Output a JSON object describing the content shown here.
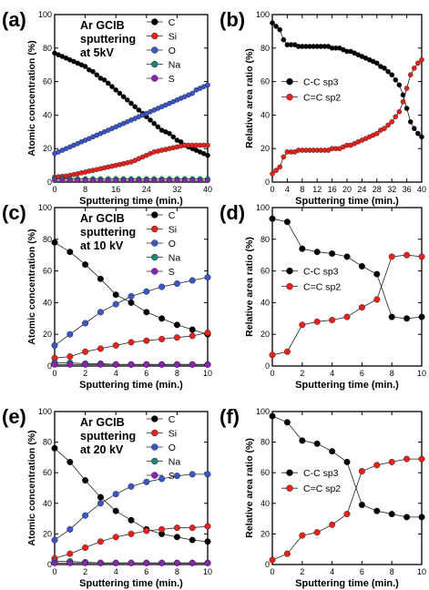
{
  "colors": {
    "C": "#000000",
    "Si": "#e8231d",
    "O": "#3b56c7",
    "Na": "#13877a",
    "S": "#8a22b8",
    "sp3": "#000000",
    "sp2": "#e8231d"
  },
  "chart_data": [
    {
      "panel": "(a)",
      "type": "line",
      "annotation": [
        "Ar GCIB",
        "sputtering",
        "at 5kV"
      ],
      "xlabel": "Sputtering time (min.)",
      "ylabel": "Atomic concentration (%)",
      "xlim": [
        0,
        40
      ],
      "ylim": [
        0,
        100
      ],
      "xticks": [
        0,
        8,
        16,
        24,
        32,
        40
      ],
      "yticks": [
        0,
        20,
        40,
        60,
        80,
        100
      ],
      "legend_position": "top-right",
      "legend_box": false,
      "series": [
        {
          "name": "C",
          "key": "C",
          "x": [
            0,
            1,
            2,
            3,
            4,
            5,
            6,
            7,
            8,
            9,
            10,
            11,
            12,
            13,
            14,
            15,
            16,
            17,
            18,
            19,
            20,
            21,
            22,
            23,
            24,
            25,
            26,
            27,
            28,
            29,
            30,
            31,
            32,
            33,
            34,
            35,
            36,
            37,
            38,
            39,
            40
          ],
          "y": [
            77,
            76,
            75,
            74,
            73,
            72,
            71,
            70,
            69,
            67,
            66,
            64,
            62,
            61,
            59,
            57,
            55,
            53,
            51,
            49,
            47,
            45,
            43,
            41,
            39,
            37,
            35,
            33,
            31,
            30,
            29,
            27,
            25,
            24,
            22,
            21,
            20,
            19,
            18,
            17,
            16
          ]
        },
        {
          "name": "Si",
          "key": "Si",
          "x": [
            0,
            1,
            2,
            3,
            4,
            5,
            6,
            7,
            8,
            9,
            10,
            11,
            12,
            13,
            14,
            15,
            16,
            17,
            18,
            19,
            20,
            21,
            22,
            23,
            24,
            25,
            26,
            27,
            28,
            29,
            30,
            31,
            32,
            33,
            34,
            35,
            36,
            37,
            38,
            39,
            40
          ],
          "y": [
            3,
            3.2,
            3.4,
            3.6,
            4,
            4.5,
            5,
            5.5,
            6,
            6.5,
            7,
            7.5,
            8,
            8.5,
            9,
            9.5,
            10,
            10.5,
            11,
            11.5,
            12,
            13,
            14,
            15,
            16,
            17,
            18,
            18.5,
            19,
            19.5,
            20,
            20.5,
            21,
            21.5,
            22,
            22,
            22,
            22,
            22,
            22,
            22
          ]
        },
        {
          "name": "O",
          "key": "O",
          "x": [
            0,
            1,
            2,
            3,
            4,
            5,
            6,
            7,
            8,
            9,
            10,
            11,
            12,
            13,
            14,
            15,
            16,
            17,
            18,
            19,
            20,
            21,
            22,
            23,
            24,
            25,
            26,
            27,
            28,
            29,
            30,
            31,
            32,
            33,
            34,
            35,
            36,
            37,
            38,
            39,
            40
          ],
          "y": [
            17,
            18,
            19,
            20,
            21,
            22,
            23,
            24,
            25,
            26,
            27,
            28,
            29,
            30,
            31,
            32,
            33,
            34,
            35,
            36,
            37,
            38,
            39,
            40,
            41,
            42,
            43,
            44,
            45,
            46,
            47,
            48,
            49,
            50,
            51,
            52,
            53,
            55,
            56,
            57,
            58
          ]
        },
        {
          "name": "Na",
          "key": "Na",
          "x": [
            0,
            2,
            4,
            6,
            8,
            10,
            12,
            14,
            16,
            18,
            20,
            22,
            24,
            26,
            28,
            30,
            32,
            34,
            36,
            38,
            40
          ],
          "y": [
            2,
            2,
            2,
            2,
            2,
            2,
            2,
            2,
            2,
            2,
            2,
            2,
            2,
            2,
            2,
            2,
            2,
            2,
            2,
            2,
            2
          ]
        },
        {
          "name": "S",
          "key": "S",
          "x": [
            0,
            2,
            4,
            6,
            8,
            10,
            12,
            14,
            16,
            18,
            20,
            22,
            24,
            26,
            28,
            30,
            32,
            34,
            36,
            38,
            40
          ],
          "y": [
            1,
            1,
            1,
            1,
            1,
            1,
            1,
            1,
            1,
            1,
            1,
            1,
            1,
            1,
            1,
            1,
            1,
            1,
            1,
            1,
            1
          ]
        }
      ]
    },
    {
      "panel": "(b)",
      "type": "line",
      "annotation": [],
      "xlabel": "Sputtering time (min.)",
      "ylabel": "Relative area ratio (%)",
      "xlim": [
        0,
        40
      ],
      "ylim": [
        0,
        100
      ],
      "xticks": [
        0,
        4,
        8,
        12,
        16,
        20,
        24,
        28,
        32,
        36,
        40
      ],
      "xticklabels": [
        "0",
        "4",
        "8",
        "12",
        "16",
        "20",
        "24",
        "28",
        "32",
        "36",
        "40"
      ],
      "yticks": [
        0,
        20,
        40,
        60,
        80,
        100
      ],
      "legend_position": "middle-left",
      "legend_box": false,
      "series": [
        {
          "name": "C-C sp3",
          "key": "sp3",
          "x": [
            0,
            1,
            2,
            3,
            4,
            5,
            6,
            7,
            8,
            9,
            10,
            11,
            12,
            13,
            14,
            15,
            16,
            17,
            18,
            19,
            20,
            21,
            22,
            23,
            24,
            25,
            26,
            27,
            28,
            29,
            30,
            31,
            32,
            33,
            34,
            35,
            36,
            37,
            38,
            39,
            40
          ],
          "y": [
            95,
            93,
            91,
            85,
            82,
            82,
            82,
            81,
            81,
            81,
            81,
            81,
            81,
            81,
            81,
            81,
            80,
            80,
            80,
            79,
            78,
            78,
            77,
            76,
            75,
            74,
            73,
            72,
            71,
            69,
            68,
            66,
            64,
            61,
            58,
            52,
            44,
            36,
            32,
            29,
            27
          ]
        },
        {
          "name": "C=C sp2",
          "key": "sp2",
          "x": [
            0,
            1,
            2,
            3,
            4,
            5,
            6,
            7,
            8,
            9,
            10,
            11,
            12,
            13,
            14,
            15,
            16,
            17,
            18,
            19,
            20,
            21,
            22,
            23,
            24,
            25,
            26,
            27,
            28,
            29,
            30,
            31,
            32,
            33,
            34,
            35,
            36,
            37,
            38,
            39,
            40
          ],
          "y": [
            5,
            7,
            9,
            15,
            18,
            18,
            18,
            19,
            19,
            19,
            19,
            19,
            19,
            19,
            19,
            19,
            20,
            20,
            20,
            21,
            22,
            22,
            23,
            24,
            25,
            26,
            27,
            28,
            29,
            31,
            32,
            34,
            36,
            39,
            42,
            48,
            56,
            64,
            68,
            71,
            73
          ]
        }
      ]
    },
    {
      "panel": "(c)",
      "type": "line",
      "annotation": [
        "Ar GCIB",
        "sputtering",
        "at 10 kV"
      ],
      "xlabel": "Sputtering time (min.)",
      "ylabel": "Atomic concentration (%)",
      "xlim": [
        0,
        10
      ],
      "ylim": [
        0,
        100
      ],
      "xticks": [
        0,
        2,
        4,
        6,
        8,
        10
      ],
      "yticks": [
        0,
        20,
        40,
        60,
        80,
        100
      ],
      "legend_position": "top-right",
      "legend_box": false,
      "series": [
        {
          "name": "C",
          "key": "C",
          "x": [
            0,
            1,
            2,
            3,
            4,
            5,
            6,
            7,
            8,
            9,
            10
          ],
          "y": [
            78,
            72,
            64,
            55,
            45,
            40,
            34,
            30,
            26,
            23,
            20
          ]
        },
        {
          "name": "Si",
          "key": "Si",
          "x": [
            0,
            1,
            2,
            3,
            4,
            5,
            6,
            7,
            8,
            9,
            10
          ],
          "y": [
            5,
            6,
            9,
            11,
            13,
            15,
            16,
            17,
            18,
            19,
            21
          ]
        },
        {
          "name": "O",
          "key": "O",
          "x": [
            0,
            1,
            2,
            3,
            4,
            5,
            6,
            7,
            8,
            9,
            10
          ],
          "y": [
            13,
            20,
            27,
            34,
            39,
            44,
            47,
            50,
            52,
            54,
            56
          ]
        },
        {
          "name": "Na",
          "key": "Na",
          "x": [
            0,
            1,
            2,
            3,
            4,
            5,
            6,
            7,
            8,
            9,
            10
          ],
          "y": [
            2,
            2,
            1.5,
            1.5,
            1,
            1,
            1,
            1,
            1,
            1,
            1
          ]
        },
        {
          "name": "S",
          "key": "S",
          "x": [
            0,
            1,
            2,
            3,
            4,
            5,
            6,
            7,
            8,
            9,
            10
          ],
          "y": [
            1,
            1,
            1,
            1,
            1,
            1,
            1,
            1,
            1,
            1,
            1
          ]
        }
      ]
    },
    {
      "panel": "(d)",
      "type": "line",
      "annotation": [],
      "xlabel": "Sputtering time (min.)",
      "ylabel": "Relative area ratio (%)",
      "xlim": [
        0,
        10
      ],
      "ylim": [
        0,
        100
      ],
      "xticks": [
        0,
        2,
        4,
        6,
        8,
        10
      ],
      "yticks": [
        0,
        20,
        40,
        60,
        80,
        100
      ],
      "legend_position": "middle-left",
      "legend_box": false,
      "series": [
        {
          "name": "C-C sp3",
          "key": "sp3",
          "x": [
            0,
            1,
            2,
            3,
            4,
            5,
            6,
            7,
            8,
            9,
            10
          ],
          "y": [
            93,
            91,
            74,
            72,
            71,
            69,
            63,
            58,
            31,
            30,
            31
          ]
        },
        {
          "name": "C=C sp2",
          "key": "sp2",
          "x": [
            0,
            1,
            2,
            3,
            4,
            5,
            6,
            7,
            8,
            9,
            10
          ],
          "y": [
            7,
            9,
            26,
            28,
            29,
            31,
            37,
            42,
            69,
            70,
            69
          ]
        }
      ]
    },
    {
      "panel": "(e)",
      "type": "line",
      "annotation": [
        "Ar GCIB",
        "sputtering",
        "at 20 kV"
      ],
      "xlabel": "Sputtering time (min.)",
      "ylabel": "Atomic concentration (%)",
      "xlim": [
        0,
        10
      ],
      "ylim": [
        0,
        100
      ],
      "xticks": [
        0,
        2,
        4,
        6,
        8,
        10
      ],
      "yticks": [
        0,
        20,
        40,
        60,
        80,
        100
      ],
      "legend_position": "top-right",
      "legend_box": false,
      "series": [
        {
          "name": "C",
          "key": "C",
          "x": [
            0,
            1,
            2,
            3,
            4,
            5,
            6,
            7,
            8,
            9,
            10
          ],
          "y": [
            76,
            67,
            55,
            44,
            35,
            29,
            23,
            20,
            18,
            16,
            15
          ]
        },
        {
          "name": "Si",
          "key": "Si",
          "x": [
            0,
            1,
            2,
            3,
            4,
            5,
            6,
            7,
            8,
            9,
            10
          ],
          "y": [
            4,
            7,
            11,
            15,
            18,
            20,
            22,
            23,
            24,
            24,
            25
          ]
        },
        {
          "name": "O",
          "key": "O",
          "x": [
            0,
            1,
            2,
            3,
            4,
            5,
            6,
            7,
            8,
            9,
            10
          ],
          "y": [
            16,
            23,
            32,
            40,
            46,
            51,
            54,
            56,
            58,
            59,
            59
          ]
        },
        {
          "name": "Na",
          "key": "Na",
          "x": [
            0,
            1,
            2,
            3,
            4,
            5,
            6,
            7,
            8,
            9,
            10
          ],
          "y": [
            2,
            2,
            1.5,
            1,
            1,
            1,
            1,
            1,
            1,
            1,
            1
          ]
        },
        {
          "name": "S",
          "key": "S",
          "x": [
            0,
            1,
            2,
            3,
            4,
            5,
            6,
            7,
            8,
            9,
            10
          ],
          "y": [
            1,
            1,
            1,
            1,
            1,
            1,
            1,
            1,
            1,
            1,
            1
          ]
        }
      ]
    },
    {
      "panel": "(f)",
      "type": "line",
      "annotation": [],
      "xlabel": "Sputtering time (min.)",
      "ylabel": "Relative area ratio (%)",
      "xlim": [
        0,
        10
      ],
      "ylim": [
        0,
        100
      ],
      "xticks": [
        0,
        2,
        4,
        6,
        8,
        10
      ],
      "yticks": [
        0,
        20,
        40,
        60,
        80,
        100
      ],
      "legend_position": "middle-left",
      "legend_box": false,
      "series": [
        {
          "name": "C-C sp3",
          "key": "sp3",
          "x": [
            0,
            1,
            2,
            3,
            4,
            5,
            6,
            7,
            8,
            9,
            10
          ],
          "y": [
            97,
            93,
            81,
            79,
            74,
            67,
            39,
            35,
            33,
            31,
            31
          ]
        },
        {
          "name": "C=C sp2",
          "key": "sp2",
          "x": [
            0,
            1,
            2,
            3,
            4,
            5,
            6,
            7,
            8,
            9,
            10
          ],
          "y": [
            3,
            7,
            19,
            21,
            26,
            33,
            61,
            65,
            67,
            69,
            69
          ]
        }
      ]
    }
  ]
}
